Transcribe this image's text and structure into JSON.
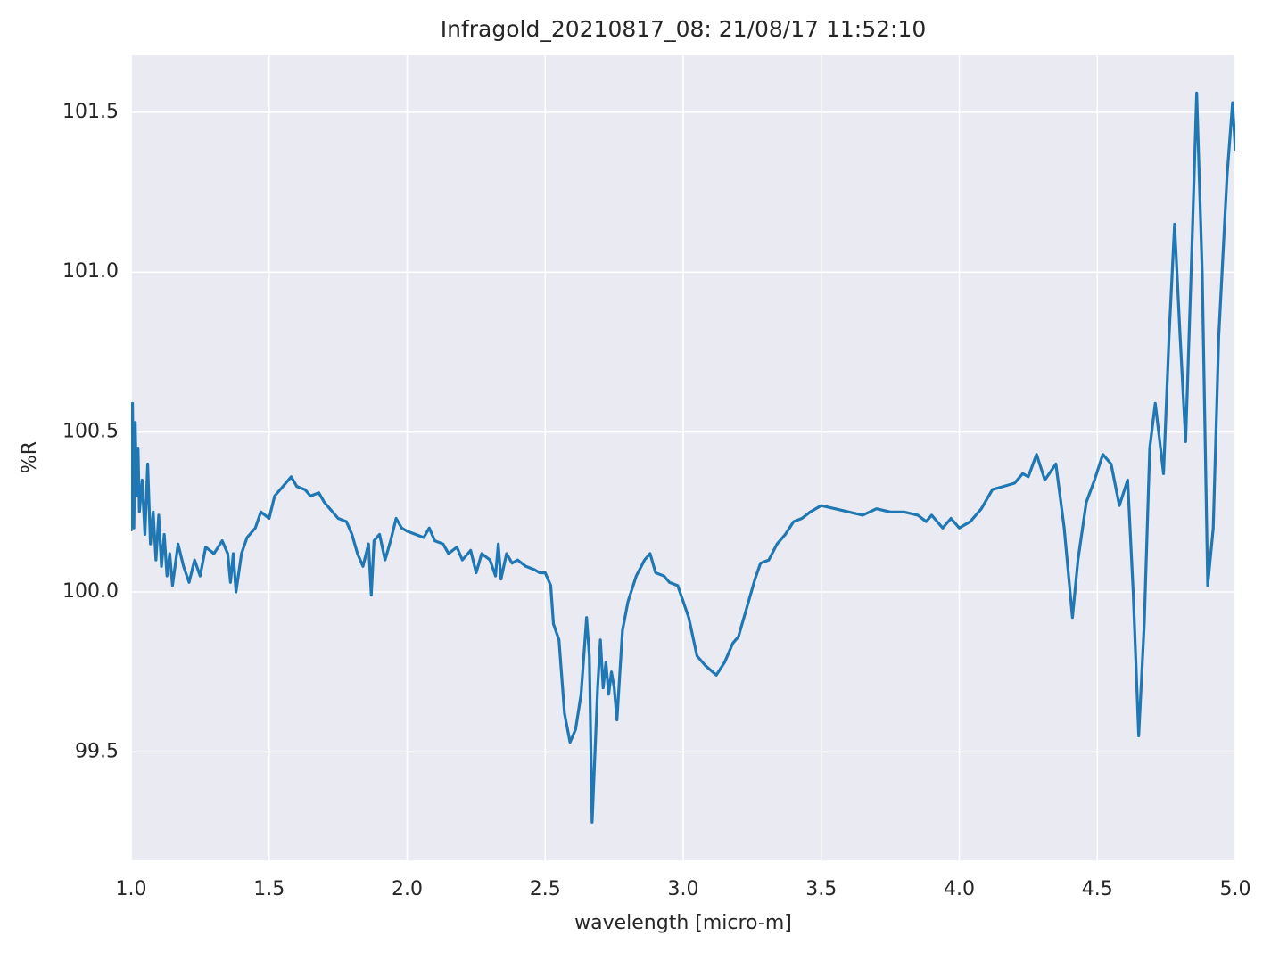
{
  "chart_data": {
    "type": "line",
    "title": "Infragold_20210817_08:  21/08/17 11:52:10",
    "x_label": "wavelength [micro-m]",
    "y_label": "%R",
    "color": "#1f77b4",
    "grid": true,
    "xlim": [
      1.0,
      5.0
    ],
    "ylim": [
      99.161,
      101.678
    ],
    "xticks": [
      {
        "value": 1.0,
        "label": "1.0"
      },
      1.5,
      {
        "value": 2.0,
        "label": "2.0"
      },
      2.5,
      {
        "value": 3.0,
        "label": "3.0"
      },
      3.5,
      {
        "value": 4.0,
        "label": "4.0"
      },
      4.5,
      {
        "value": 5.0,
        "label": "5.0"
      }
    ],
    "yticks": [
      99.5,
      {
        "value": 100.0,
        "label": "100.0"
      },
      100.5,
      {
        "value": 101.0,
        "label": "101.0"
      },
      101.5
    ],
    "x": [
      1.0,
      1.005,
      1.01,
      1.015,
      1.02,
      1.025,
      1.03,
      1.04,
      1.05,
      1.06,
      1.07,
      1.08,
      1.09,
      1.1,
      1.11,
      1.12,
      1.13,
      1.14,
      1.15,
      1.17,
      1.19,
      1.21,
      1.23,
      1.25,
      1.27,
      1.3,
      1.33,
      1.35,
      1.36,
      1.37,
      1.38,
      1.4,
      1.42,
      1.45,
      1.47,
      1.5,
      1.52,
      1.55,
      1.58,
      1.6,
      1.63,
      1.65,
      1.68,
      1.7,
      1.73,
      1.75,
      1.78,
      1.8,
      1.82,
      1.84,
      1.86,
      1.87,
      1.88,
      1.9,
      1.92,
      1.94,
      1.96,
      1.98,
      2.0,
      2.03,
      2.06,
      2.08,
      2.1,
      2.13,
      2.15,
      2.18,
      2.2,
      2.23,
      2.25,
      2.27,
      2.3,
      2.32,
      2.33,
      2.34,
      2.36,
      2.38,
      2.4,
      2.43,
      2.46,
      2.48,
      2.5,
      2.52,
      2.53,
      2.55,
      2.57,
      2.59,
      2.61,
      2.63,
      2.65,
      2.66,
      2.67,
      2.69,
      2.7,
      2.71,
      2.72,
      2.73,
      2.74,
      2.75,
      2.76,
      2.78,
      2.8,
      2.83,
      2.86,
      2.88,
      2.9,
      2.93,
      2.95,
      2.98,
      3.0,
      3.02,
      3.05,
      3.08,
      3.12,
      3.15,
      3.18,
      3.2,
      3.23,
      3.26,
      3.28,
      3.31,
      3.34,
      3.37,
      3.4,
      3.43,
      3.46,
      3.5,
      3.55,
      3.6,
      3.65,
      3.7,
      3.75,
      3.8,
      3.85,
      3.88,
      3.9,
      3.94,
      3.97,
      4.0,
      4.04,
      4.08,
      4.12,
      4.16,
      4.2,
      4.23,
      4.25,
      4.28,
      4.31,
      4.35,
      4.38,
      4.41,
      4.43,
      4.46,
      4.49,
      4.52,
      4.55,
      4.58,
      4.61,
      4.63,
      4.65,
      4.67,
      4.69,
      4.71,
      4.74,
      4.76,
      4.78,
      4.8,
      4.82,
      4.84,
      4.86,
      4.88,
      4.9,
      4.92,
      4.94,
      4.97,
      4.99,
      5.0
    ],
    "values": [
      100.19,
      100.59,
      100.2,
      100.53,
      100.3,
      100.45,
      100.25,
      100.35,
      100.18,
      100.4,
      100.15,
      100.25,
      100.1,
      100.24,
      100.08,
      100.18,
      100.05,
      100.12,
      100.02,
      100.15,
      100.08,
      100.03,
      100.1,
      100.05,
      100.14,
      100.12,
      100.16,
      100.12,
      100.03,
      100.12,
      100.0,
      100.12,
      100.17,
      100.2,
      100.25,
      100.23,
      100.3,
      100.33,
      100.36,
      100.33,
      100.32,
      100.3,
      100.31,
      100.28,
      100.25,
      100.23,
      100.22,
      100.18,
      100.12,
      100.08,
      100.15,
      99.99,
      100.16,
      100.18,
      100.1,
      100.16,
      100.23,
      100.2,
      100.19,
      100.18,
      100.17,
      100.2,
      100.16,
      100.15,
      100.12,
      100.14,
      100.1,
      100.13,
      100.06,
      100.12,
      100.1,
      100.05,
      100.15,
      100.04,
      100.12,
      100.09,
      100.1,
      100.08,
      100.07,
      100.06,
      100.06,
      100.02,
      99.9,
      99.85,
      99.62,
      99.53,
      99.57,
      99.68,
      99.92,
      99.8,
      99.28,
      99.7,
      99.85,
      99.7,
      99.78,
      99.68,
      99.75,
      99.7,
      99.6,
      99.88,
      99.97,
      100.05,
      100.1,
      100.12,
      100.06,
      100.05,
      100.03,
      100.02,
      99.97,
      99.92,
      99.8,
      99.77,
      99.74,
      99.78,
      99.84,
      99.86,
      99.95,
      100.04,
      100.09,
      100.1,
      100.15,
      100.18,
      100.22,
      100.23,
      100.25,
      100.27,
      100.26,
      100.25,
      100.24,
      100.26,
      100.25,
      100.25,
      100.24,
      100.22,
      100.24,
      100.2,
      100.23,
      100.2,
      100.22,
      100.26,
      100.32,
      100.33,
      100.34,
      100.37,
      100.36,
      100.43,
      100.35,
      100.4,
      100.2,
      99.92,
      100.1,
      100.28,
      100.35,
      100.43,
      100.4,
      100.27,
      100.35,
      100.0,
      99.55,
      99.9,
      100.45,
      100.59,
      100.37,
      100.8,
      101.15,
      100.8,
      100.47,
      101.0,
      101.56,
      101.0,
      100.02,
      100.2,
      100.8,
      101.3,
      101.53,
      101.38
    ]
  }
}
